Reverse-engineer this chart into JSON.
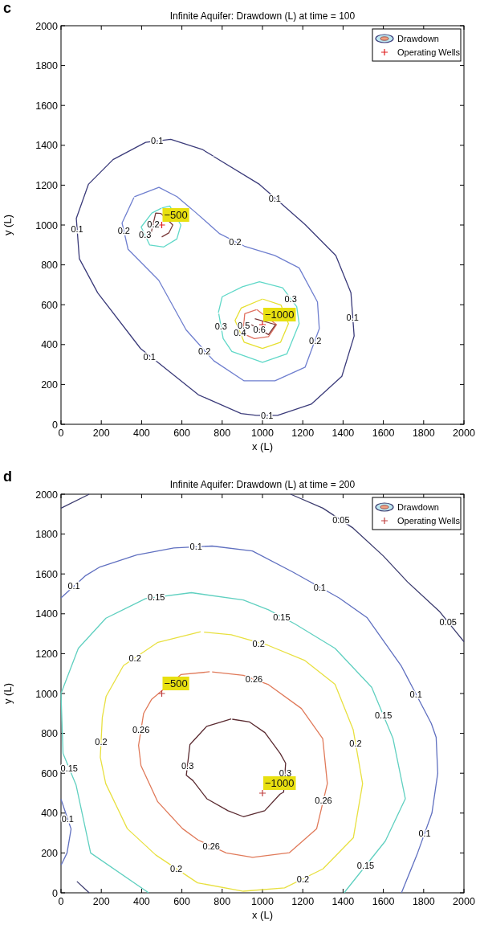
{
  "chart_data": [
    {
      "type": "line",
      "title": "Infinite Aquifer: Drawdown (L) at time = 100",
      "xlabel": "x (L)",
      "ylabel": "y (L)",
      "xlim": [
        0,
        2000
      ],
      "ylim": [
        0,
        2000
      ],
      "xticks": [
        0,
        200,
        400,
        600,
        800,
        1000,
        1200,
        1400,
        1600,
        1800,
        2000
      ],
      "yticks": [
        0,
        200,
        400,
        600,
        800,
        1000,
        1200,
        1400,
        1600,
        1800,
        2000
      ],
      "legend": "top right",
      "annotations": [
        "c",
        {
          "text": "0.1",
          "x": 477,
          "y": 1422
        },
        {
          "text": "0.1",
          "x": 1061,
          "y": 1134
        },
        {
          "text": "0.1",
          "x": 1447,
          "y": 536
        },
        {
          "text": "0.1",
          "x": 439,
          "y": 340
        },
        {
          "text": "0.1",
          "x": 1023,
          "y": 45
        },
        {
          "text": "0.1",
          "x": 80,
          "y": 979
        },
        {
          "text": "0.2",
          "x": 312,
          "y": 971
        },
        {
          "text": "0.2",
          "x": 864,
          "y": 917
        },
        {
          "text": "0.2",
          "x": 712,
          "y": 368
        },
        {
          "text": "0.2",
          "x": 1262,
          "y": 420
        },
        {
          "text": "0.2",
          "x": 458,
          "y": 1005
        },
        {
          "text": "0.3",
          "x": 417,
          "y": 950
        },
        {
          "text": "0.3",
          "x": 1140,
          "y": 629
        },
        {
          "text": "0.3",
          "x": 794,
          "y": 490
        },
        {
          "text": "0.5",
          "x": 907,
          "y": 497
        },
        {
          "text": "0.4",
          "x": 888,
          "y": 458
        },
        {
          "text": "0.6",
          "x": 985,
          "y": 476
        },
        {
          "text": "−500",
          "x": 500,
          "y": 1000
        },
        {
          "text": "−1000",
          "x": 1000,
          "y": 500
        }
      ],
      "series": [
        {
          "name": "Drawdown",
          "color": "#3b3b7a",
          "x": [
            758,
            985,
            1212,
            1364,
            1439,
            1455,
            1394,
            1242,
            1075,
            970,
            894,
            682,
            395,
            182,
            91,
            76,
            136,
            258,
            420,
            545,
            700,
            756
          ],
          "values": [
            1344,
            1204,
            1002,
            847,
            660,
            443,
            241,
            101,
            45,
            45,
            54,
            148,
            380,
            660,
            831,
            1033,
            1204,
            1328,
            1415,
            1430,
            1380,
            1346
          ]
        },
        {
          "color": "#6f7fcf",
          "x": [
            364,
            486,
            576,
            667,
            788,
            910,
            1061,
            1182,
            1273,
            1282,
            1212,
            1062,
            909,
            758,
            621,
            485,
            333,
            303,
            362
          ],
          "values": [
            1142,
            1189,
            1142,
            1064,
            956,
            894,
            847,
            785,
            614,
            480,
            287,
            218,
            218,
            319,
            474,
            723,
            878,
            1010,
            1138
          ]
        },
        {
          "color": "#60d8c8",
          "x": [
            500,
            540,
            595,
            575,
            510,
            440,
            398,
            451,
            498
          ],
          "values": [
            1085,
            1095,
            1000,
            930,
            890,
            900,
            990,
            1060,
            1084
          ]
        },
        {
          "color": "#7a3a3a",
          "x": [
            500,
            535,
            555,
            496,
            470,
            445
          ],
          "values": [
            940,
            960,
            1000,
            1058,
            1060,
            950
          ]
        },
        {
          "color": "#60d8c8",
          "x": [
            781,
            800,
            900,
            985,
            1100,
            1170,
            1182,
            1121,
            1000,
            848,
            805,
            783
          ],
          "values": [
            560,
            640,
            690,
            715,
            685,
            590,
            505,
            353,
            311,
            365,
            430,
            555
          ]
        },
        {
          "color": "#e6e030",
          "x": [
            1001,
            894,
            864,
            909,
            1000,
            1090,
            1129,
            1092,
            1003
          ],
          "values": [
            629,
            583,
            521,
            412,
            381,
            412,
            505,
            598,
            628
          ]
        },
        {
          "color": "#e07060",
          "x": [
            970,
            912,
            903,
            960,
            1030,
            1070,
            972
          ],
          "values": [
            575,
            555,
            455,
            430,
            440,
            500,
            576
          ]
        },
        {
          "color": "#7a3a3a",
          "x": [
            945,
            1030,
            1065,
            962
          ],
          "values": [
            500,
            450,
            500,
            530
          ]
        },
        {
          "name": "Operating Wells",
          "type": "scatter",
          "marker": "cross",
          "color": "#e02020",
          "x": [
            500,
            1000
          ],
          "values": [
            1000,
            500
          ]
        }
      ]
    },
    {
      "type": "line",
      "title": "Infinite Aquifer: Drawdown (L) at time = 200",
      "xlabel": "x (L)",
      "ylabel": "y (L)",
      "xlim": [
        0,
        2000
      ],
      "ylim": [
        0,
        2000
      ],
      "xticks": [
        0,
        200,
        400,
        600,
        800,
        1000,
        1200,
        1400,
        1600,
        1800,
        2000
      ],
      "yticks": [
        0,
        200,
        400,
        600,
        800,
        1000,
        1200,
        1400,
        1600,
        1800,
        2000
      ],
      "legend": "top right",
      "annotations": [
        "d",
        {
          "text": "0.05",
          "x": 1390,
          "y": 1870
        },
        {
          "text": "0.05",
          "x": 1921,
          "y": 1359
        },
        {
          "text": "0.1",
          "x": 670,
          "y": 1736
        },
        {
          "text": "0.1",
          "x": 64,
          "y": 1539
        },
        {
          "text": "0.1",
          "x": 1284,
          "y": 1534
        },
        {
          "text": "0.1",
          "x": 1762,
          "y": 997
        },
        {
          "text": "0.1",
          "x": 1805,
          "y": 300
        },
        {
          "text": "0.1",
          "x": 33,
          "y": 371
        },
        {
          "text": "0.15",
          "x": 473,
          "y": 1483
        },
        {
          "text": "0.15",
          "x": 1095,
          "y": 1385
        },
        {
          "text": "0.15",
          "x": 1600,
          "y": 890
        },
        {
          "text": "0.15",
          "x": 1512,
          "y": 136
        },
        {
          "text": "0.15",
          "x": 41,
          "y": 623
        },
        {
          "text": "0.2",
          "x": 367,
          "y": 1179
        },
        {
          "text": "0.2",
          "x": 981,
          "y": 1252
        },
        {
          "text": "0.2",
          "x": 199,
          "y": 759
        },
        {
          "text": "0.2",
          "x": 1462,
          "y": 752
        },
        {
          "text": "0.2",
          "x": 572,
          "y": 121
        },
        {
          "text": "0.2",
          "x": 1201,
          "y": 70
        },
        {
          "text": "0.26",
          "x": 958,
          "y": 1071
        },
        {
          "text": "0.26",
          "x": 397,
          "y": 820
        },
        {
          "text": "0.26",
          "x": 1303,
          "y": 465
        },
        {
          "text": "0.26",
          "x": 746,
          "y": 234
        },
        {
          "text": "0.3",
          "x": 628,
          "y": 638
        },
        {
          "text": "0.3",
          "x": 1113,
          "y": 601
        },
        {
          "text": "−500",
          "x": 500,
          "y": 1000
        },
        {
          "text": "−1000",
          "x": 1000,
          "y": 500
        }
      ],
      "series": [
        {
          "name": "Drawdown",
          "color": "#3b3b6e",
          "x": [
            1140,
            1300,
            1450,
            1600,
            1720,
            1880,
            1960,
            2000
          ],
          "values": [
            2000,
            1930,
            1830,
            1690,
            1560,
            1410,
            1310,
            1260
          ]
        },
        {
          "color": "#3b3b6e",
          "x": [
            0,
            140
          ],
          "values": [
            1930,
            2000
          ]
        },
        {
          "color": "#3b3b6e",
          "x": [
            79,
            140
          ],
          "values": [
            57,
            0
          ]
        },
        {
          "color": "#6070c0",
          "x": [
            1690,
            1770,
            1841,
            1870,
            1862,
            1838,
            1688,
            1520,
            1380,
            1150,
            950,
            750,
            560,
            375,
            193,
            120,
            0
          ],
          "values": [
            0,
            200,
            400,
            600,
            780,
            850,
            1140,
            1380,
            1480,
            1610,
            1715,
            1740,
            1730,
            1695,
            1635,
            1590,
            1480
          ]
        },
        {
          "color": "#6070c0",
          "x": [
            0,
            50,
            30,
            1
          ],
          "values": [
            470,
            320,
            200,
            140
          ]
        },
        {
          "color": "#60d0c0",
          "x": [
            1405,
            1610,
            1709,
            1648,
            1542,
            1360,
            1160,
            1030,
            905,
            647,
            420,
            223,
            86,
            0,
            10,
            75,
            147,
            435
          ],
          "values": [
            0,
            260,
            472,
            774,
            1031,
            1227,
            1350,
            1420,
            1469,
            1506,
            1476,
            1378,
            1227,
            1000,
            700,
            540,
            200,
            0
          ]
        },
        {
          "color": "#e8e040",
          "x": [
            693,
            481,
            310,
            224,
            205,
            195,
            222,
            329,
            470,
            678,
            905,
            1110,
            1300,
            1451,
            1497,
            1450,
            1360,
            1208,
            1027,
            845,
            710
          ],
          "values": [
            1310,
            1257,
            1140,
            986,
            880,
            680,
            548,
            322,
            190,
            50,
            8,
            25,
            120,
            276,
            548,
            820,
            1046,
            1167,
            1242,
            1295,
            1308
          ]
        },
        {
          "color": "#e07a5a",
          "x": [
            738,
            595,
            450,
            410,
            385,
            397,
            480,
            603,
            680,
            820,
            951,
            1133,
            1269,
            1322,
            1299,
            1193,
            1027,
            905,
            750
          ],
          "values": [
            1109,
            1095,
            971,
            900,
            740,
            638,
            457,
            322,
            265,
            200,
            178,
            201,
            322,
            548,
            774,
            925,
            1046,
            1091,
            1108
          ]
        },
        {
          "color": "#5a2a30",
          "x": [
            845,
            723,
            640,
            622,
            655,
            724,
            829,
            905,
            1011,
            1087,
            1105,
            1115,
            1088,
            1012,
            936,
            850
          ],
          "values": [
            872,
            835,
            744,
            590,
            563,
            472,
            412,
            382,
            412,
            495,
            505,
            650,
            699,
            804,
            857,
            871
          ]
        },
        {
          "name": "Operating Wells",
          "type": "scatter",
          "marker": "cross",
          "color": "#c04040",
          "x": [
            500,
            1000
          ],
          "values": [
            1000,
            500
          ]
        }
      ]
    }
  ]
}
